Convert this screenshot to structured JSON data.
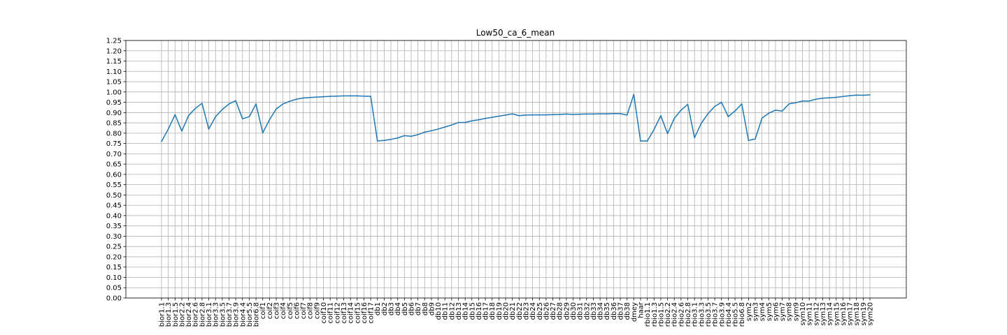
{
  "chart_data": {
    "type": "line",
    "title": "Low50_ca_6_mean",
    "xlabel": "",
    "ylabel": "",
    "ylim": [
      0,
      1.25
    ],
    "yticks": [
      "0.00",
      "0.05",
      "0.10",
      "0.15",
      "0.20",
      "0.25",
      "0.30",
      "0.35",
      "0.40",
      "0.45",
      "0.50",
      "0.55",
      "0.60",
      "0.65",
      "0.70",
      "0.75",
      "0.80",
      "0.85",
      "0.90",
      "0.95",
      "1.00",
      "1.05",
      "1.10",
      "1.15",
      "1.20",
      "1.25"
    ],
    "grid": true,
    "line_color": "#1f77b4",
    "categories": [
      "bior1.1",
      "bior1.3",
      "bior1.5",
      "bior2.2",
      "bior2.4",
      "bior2.6",
      "bior2.8",
      "bior3.1",
      "bior3.3",
      "bior3.5",
      "bior3.7",
      "bior3.9",
      "bior4.4",
      "bior5.5",
      "bior6.8",
      "coif1",
      "coif2",
      "coif3",
      "coif4",
      "coif5",
      "coif6",
      "coif7",
      "coif8",
      "coif9",
      "coif10",
      "coif11",
      "coif12",
      "coif13",
      "coif14",
      "coif15",
      "coif16",
      "coif17",
      "db1",
      "db2",
      "db3",
      "db4",
      "db5",
      "db6",
      "db7",
      "db8",
      "db9",
      "db10",
      "db11",
      "db12",
      "db13",
      "db14",
      "db15",
      "db16",
      "db17",
      "db18",
      "db19",
      "db20",
      "db21",
      "db22",
      "db23",
      "db24",
      "db25",
      "db26",
      "db27",
      "db28",
      "db29",
      "db30",
      "db31",
      "db32",
      "db33",
      "db34",
      "db35",
      "db36",
      "db37",
      "db38",
      "dmey",
      "haar",
      "rbio1.1",
      "rbio1.3",
      "rbio1.5",
      "rbio2.2",
      "rbio2.4",
      "rbio2.6",
      "rbio2.8",
      "rbio3.1",
      "rbio3.3",
      "rbio3.5",
      "rbio3.7",
      "rbio3.9",
      "rbio4.4",
      "rbio5.5",
      "rbio6.8",
      "sym2",
      "sym3",
      "sym4",
      "sym5",
      "sym6",
      "sym7",
      "sym8",
      "sym9",
      "sym10",
      "sym11",
      "sym12",
      "sym13",
      "sym14",
      "sym15",
      "sym16",
      "sym17",
      "sym18",
      "sym19",
      "sym20"
    ],
    "series": [
      {
        "values": [
          0.76,
          0.82,
          0.89,
          0.81,
          0.885,
          0.92,
          0.945,
          0.82,
          0.88,
          0.915,
          0.942,
          0.958,
          0.87,
          0.88,
          0.942,
          0.802,
          0.865,
          0.918,
          0.942,
          0.955,
          0.965,
          0.971,
          0.973,
          0.975,
          0.977,
          0.979,
          0.98,
          0.981,
          0.981,
          0.981,
          0.98,
          0.979,
          0.762,
          0.765,
          0.77,
          0.777,
          0.788,
          0.785,
          0.793,
          0.805,
          0.812,
          0.82,
          0.83,
          0.84,
          0.852,
          0.852,
          0.86,
          0.865,
          0.872,
          0.877,
          0.883,
          0.888,
          0.894,
          0.885,
          0.888,
          0.889,
          0.889,
          0.889,
          0.89,
          0.891,
          0.893,
          0.891,
          0.892,
          0.893,
          0.893,
          0.894,
          0.894,
          0.895,
          0.895,
          0.888,
          0.988,
          0.762,
          0.762,
          0.818,
          0.885,
          0.798,
          0.872,
          0.912,
          0.94,
          0.778,
          0.848,
          0.895,
          0.93,
          0.95,
          0.88,
          0.908,
          0.942,
          0.765,
          0.772,
          0.873,
          0.897,
          0.912,
          0.907,
          0.942,
          0.948,
          0.956,
          0.956,
          0.965,
          0.97,
          0.972,
          0.974,
          0.978,
          0.982,
          0.985,
          0.984,
          0.986
        ]
      }
    ]
  }
}
